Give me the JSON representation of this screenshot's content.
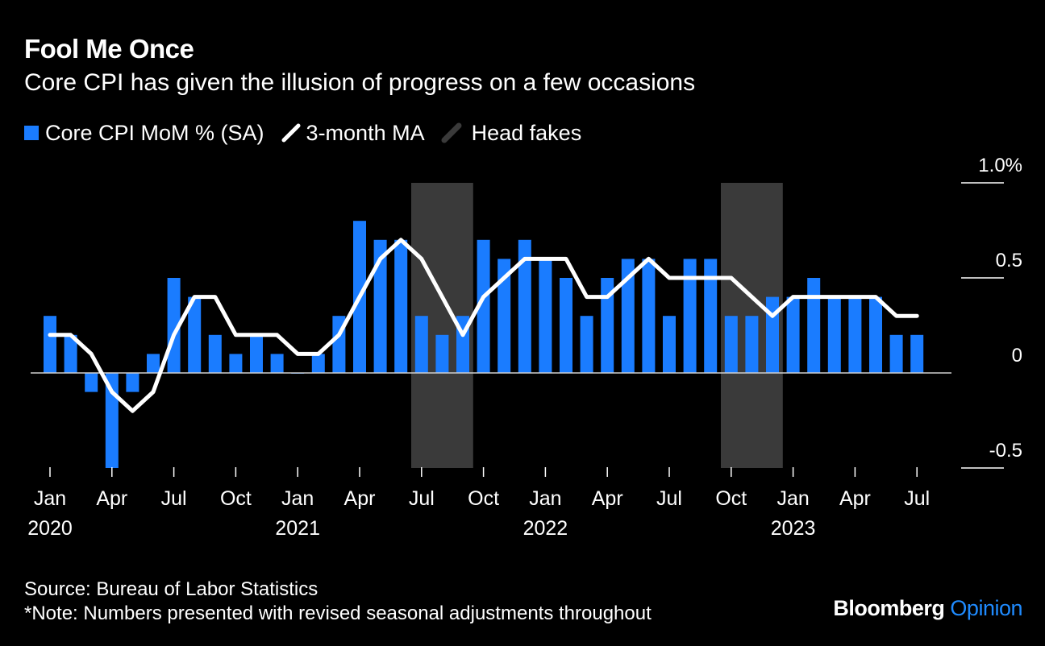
{
  "header": {
    "title": "Fool Me Once",
    "subtitle": "Core CPI has given the illusion of progress on a few occasions"
  },
  "legend": [
    {
      "label": "Core CPI MoM % (SA)",
      "kind": "bar",
      "color": "#1a7cff"
    },
    {
      "label": "3-month MA",
      "kind": "line",
      "color": "#ffffff"
    },
    {
      "label": "Head fakes",
      "kind": "shade",
      "color": "#3a3a3a"
    }
  ],
  "footer": {
    "source": "Source: Bureau of Labor Statistics",
    "note": "*Note: Numbers presented with revised seasonal adjustments throughout"
  },
  "brand": {
    "name": "Bloomberg",
    "suffix": "Opinion",
    "suffix_color": "#1f8bff"
  },
  "colors": {
    "bar": "#1a7cff",
    "line": "#ffffff",
    "shade": "#3a3a3a",
    "grid": "#ffffff",
    "background": "#000000"
  },
  "chart_data": {
    "type": "bar",
    "title": "Fool Me Once",
    "subtitle": "Core CPI has given the illusion of progress on a few occasions",
    "x": [
      "2020-01",
      "2020-02",
      "2020-03",
      "2020-04",
      "2020-05",
      "2020-06",
      "2020-07",
      "2020-08",
      "2020-09",
      "2020-10",
      "2020-11",
      "2020-12",
      "2021-01",
      "2021-02",
      "2021-03",
      "2021-04",
      "2021-05",
      "2021-06",
      "2021-07",
      "2021-08",
      "2021-09",
      "2021-10",
      "2021-11",
      "2021-12",
      "2022-01",
      "2022-02",
      "2022-03",
      "2022-04",
      "2022-05",
      "2022-06",
      "2022-07",
      "2022-08",
      "2022-09",
      "2022-10",
      "2022-11",
      "2022-12",
      "2023-01",
      "2023-02",
      "2023-03",
      "2023-04",
      "2023-05",
      "2023-06",
      "2023-07"
    ],
    "series": [
      {
        "name": "Core CPI MoM % (SA)",
        "type": "bar",
        "values": [
          0.3,
          0.2,
          -0.1,
          -0.5,
          -0.1,
          0.1,
          0.5,
          0.4,
          0.2,
          0.1,
          0.2,
          0.1,
          0.0,
          0.1,
          0.3,
          0.8,
          0.7,
          0.7,
          0.3,
          0.2,
          0.3,
          0.7,
          0.6,
          0.7,
          0.6,
          0.5,
          0.3,
          0.5,
          0.6,
          0.6,
          0.3,
          0.6,
          0.6,
          0.3,
          0.3,
          0.4,
          0.4,
          0.5,
          0.4,
          0.4,
          0.4,
          0.2,
          0.2
        ]
      },
      {
        "name": "3-month MA",
        "type": "line",
        "values": [
          0.2,
          0.2,
          0.1,
          -0.1,
          -0.2,
          -0.1,
          0.2,
          0.4,
          0.4,
          0.2,
          0.2,
          0.2,
          0.1,
          0.1,
          0.2,
          0.4,
          0.6,
          0.7,
          0.6,
          0.4,
          0.2,
          0.4,
          0.5,
          0.6,
          0.6,
          0.6,
          0.4,
          0.4,
          0.5,
          0.6,
          0.5,
          0.5,
          0.5,
          0.5,
          0.4,
          0.3,
          0.4,
          0.4,
          0.4,
          0.4,
          0.4,
          0.3,
          0.3
        ]
      }
    ],
    "shaded_periods": [
      {
        "name": "Head fakes",
        "start": "2021-07",
        "end": "2021-09"
      },
      {
        "name": "Head fakes",
        "start": "2022-10",
        "end": "2022-12"
      }
    ],
    "x_ticks": [
      {
        "x": "2020-01",
        "label": "Jan",
        "year": "2020"
      },
      {
        "x": "2020-04",
        "label": "Apr"
      },
      {
        "x": "2020-07",
        "label": "Jul"
      },
      {
        "x": "2020-10",
        "label": "Oct"
      },
      {
        "x": "2021-01",
        "label": "Jan",
        "year": "2021"
      },
      {
        "x": "2021-04",
        "label": "Apr"
      },
      {
        "x": "2021-07",
        "label": "Jul"
      },
      {
        "x": "2021-10",
        "label": "Oct"
      },
      {
        "x": "2022-01",
        "label": "Jan",
        "year": "2022"
      },
      {
        "x": "2022-04",
        "label": "Apr"
      },
      {
        "x": "2022-07",
        "label": "Jul"
      },
      {
        "x": "2022-10",
        "label": "Oct"
      },
      {
        "x": "2023-01",
        "label": "Jan",
        "year": "2023"
      },
      {
        "x": "2023-04",
        "label": "Apr"
      },
      {
        "x": "2023-07",
        "label": "Jul"
      }
    ],
    "y_ticks": [
      {
        "value": 1.0,
        "label": "1.0%"
      },
      {
        "value": 0.5,
        "label": "0.5"
      },
      {
        "value": 0,
        "label": "0"
      },
      {
        "value": -0.5,
        "label": "-0.5"
      }
    ],
    "ylim": [
      -0.5,
      1.0
    ],
    "axis_side": "right",
    "legend_position": "top-left",
    "xlabel": "",
    "ylabel": ""
  }
}
